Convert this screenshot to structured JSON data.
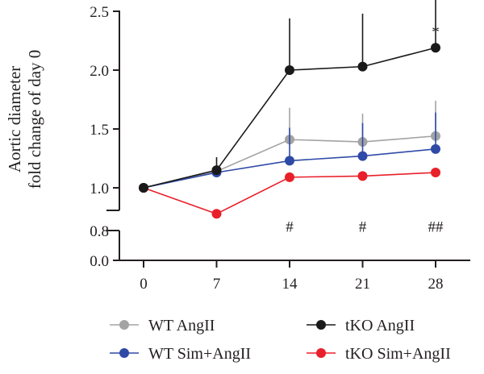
{
  "chart_data": {
    "type": "line",
    "ylabel_lines": [
      "Aortic diameter",
      "fold change of day 0"
    ],
    "x": [
      0,
      7,
      14,
      21,
      28
    ],
    "x_tick_labels": [
      "0",
      "7",
      "14",
      "21",
      "28"
    ],
    "y_tick_labels": [
      "0.0",
      "0.8",
      "1.0",
      "1.5",
      "2.0",
      "2.5"
    ],
    "y_ticks": [
      0.0,
      0.8,
      1.0,
      1.5,
      2.0,
      2.5
    ],
    "ylim": [
      0.0,
      2.5
    ],
    "axis_break": "between 0.8 and 1.0",
    "grid": false,
    "legend_position": "bottom",
    "series": [
      {
        "name": "WT AngII",
        "color": "#a3a3a3",
        "values": [
          1.0,
          1.14,
          1.41,
          1.39,
          1.44
        ],
        "error_upper": [
          0,
          0,
          1.68,
          1.63,
          1.74
        ]
      },
      {
        "name": "tKO AngII",
        "color": "#1a1a1a",
        "values": [
          1.0,
          1.15,
          2.0,
          2.03,
          2.19
        ],
        "error_upper": [
          0,
          1.26,
          2.44,
          2.48,
          2.6
        ]
      },
      {
        "name": "WT Sim+AngII",
        "color": "#2f4aa6",
        "values": [
          1.0,
          1.13,
          1.23,
          1.27,
          1.33
        ],
        "error_upper": [
          0,
          0,
          1.51,
          1.55,
          1.64
        ]
      },
      {
        "name": "tKO Sim+AngII",
        "color": "#e8202a",
        "values": [
          1.0,
          0.98,
          1.09,
          1.1,
          1.13
        ],
        "error_upper": [
          0,
          0,
          0,
          0,
          0
        ]
      }
    ],
    "annotations": [
      {
        "text": "*",
        "x": 28,
        "y": 2.38
      },
      {
        "text": "#",
        "x": 14,
        "y": 0.91
      },
      {
        "text": "#",
        "x": 21,
        "y": 0.91
      },
      {
        "text": "##",
        "x": 28,
        "y": 0.91
      }
    ]
  }
}
